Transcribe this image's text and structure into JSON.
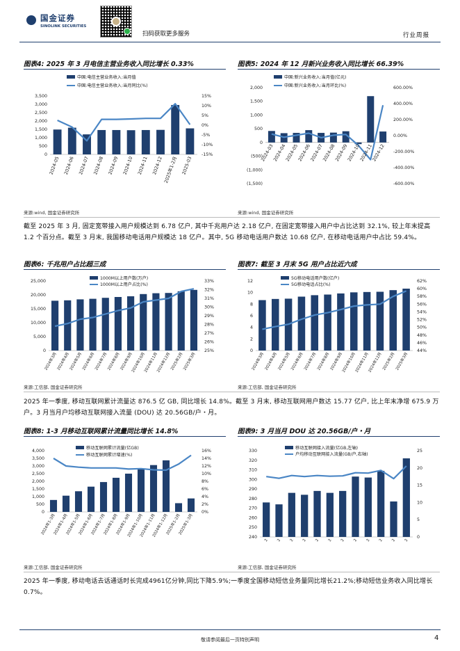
{
  "header": {
    "logo_cn": "国金证券",
    "logo_en": "SINOLINK SECURITIES",
    "scan_text": "扫码获取更多服务",
    "industry": "行业周报"
  },
  "figures": {
    "fig4": {
      "title": "图表4: 2025 年 3 月电信主营业务收入同比增长 0.33%",
      "source": "来源:wind, 国金证券研究所"
    },
    "fig5": {
      "title": "图表5: 2024 年 12 月新兴业务收入同比增长 66.39%",
      "source": "来源:wind, 国金证券研究所"
    },
    "fig6": {
      "title": "图表6: 千兆用户占比超三成",
      "source": "来源:工信部, 国金证券研究所"
    },
    "fig7": {
      "title": "图表7: 截至 3 月末 5G 用户占比近六成",
      "source": "来源:工信部, 国金证券研究所"
    },
    "fig8": {
      "title": "图表8: 1-3 月移动互联网累计流量同比增长 14.8%",
      "source": "来源:工信部, 国金证券研究所"
    },
    "fig9": {
      "title": "图表9: 3 月当月 DOU 达 20.56GB/户・月",
      "source": "来源:工信部, 国金证券研究所"
    }
  },
  "paragraphs": {
    "p1": "截至 2025 年 3 月, 固定宽带接入用户规模达到 6.78 亿户, 其中千兆用户达 2.18 亿户, 在固定宽带接入用户中占比达到 32.1%, 较上年末提高 1.2 个百分点。截至 3 月末, 我国移动电话用户规模达 18 亿户。其中, 5G 移动电话用户数达 10.68 亿户, 在移动电话用户中占比 59.4%。",
    "p2": "2025 年一季度, 移动互联网累计流量达 876.5 亿 GB, 同比增长 14.8%。截至 3 月末, 移动互联网用户数达 15.77 亿户, 比上年末净增 675.9 万户。3 月当月户均移动互联网接入流量 (DOU) 达 20.56GB/户・月。",
    "p3": "2025 年一季度, 移动电话去话通话时长完成4961亿分钟,同比下降5.9%;一季度全国移动短信业务量同比增长21.2%;移动短信业务收入同比增长 0.7%。"
  },
  "footer": {
    "disclaimer": "敬请参阅最后一页特别声明",
    "page": "4"
  },
  "colors": {
    "bar": "#1f3f6e",
    "line": "#4a86c5",
    "rule": "#1f3f6e"
  },
  "chart_data": [
    {
      "id": "fig4",
      "type": "bar",
      "categories": [
        "2024-05",
        "2024-06",
        "2024-07",
        "2024-08",
        "2024-09",
        "2024-10",
        "2024-11",
        "2024-12",
        "2025年1-2月",
        "2025-03"
      ],
      "series": [
        {
          "name": "中国:电信主营业务收入:当月值",
          "type": "bar",
          "axis": "left",
          "values": [
            1490,
            1600,
            1200,
            1460,
            1460,
            1450,
            1460,
            1470,
            2960,
            1560
          ]
        },
        {
          "name": "中国:电信主营业务收入:当月同比(%)",
          "type": "line",
          "axis": "right",
          "values": [
            2.5,
            -1,
            -8,
            3,
            3,
            3.2,
            3.5,
            3.5,
            11,
            0.33
          ]
        }
      ],
      "yleft": {
        "ticks": [
          0,
          500,
          1000,
          1500,
          2000,
          2500,
          3000,
          3500
        ],
        "labels": [
          "0",
          "500",
          "1,000",
          "1,500",
          "2,000",
          "2,500",
          "3,000",
          "3,500"
        ]
      },
      "yright": {
        "ticks": [
          -15,
          -10,
          -5,
          0,
          5,
          10,
          15
        ],
        "labels": [
          "-15%",
          "-10%",
          "-5%",
          "0%",
          "5%",
          "10%",
          "15%"
        ]
      }
    },
    {
      "id": "fig5",
      "type": "bar",
      "categories": [
        "2024-03",
        "2024-04",
        "2024-05",
        "2024-06",
        "2024-07",
        "2024-08",
        "2024-09",
        "2024-10",
        "2024-11",
        "2024-12"
      ],
      "series": [
        {
          "name": "中国:新兴业务收入:当月值(亿元)",
          "type": "bar",
          "axis": "left",
          "values": [
            420,
            340,
            350,
            450,
            350,
            360,
            410,
            -60,
            1690,
            400
          ]
        },
        {
          "name": "中国:新兴业务收入:当月环比(%)",
          "type": "line",
          "axis": "right",
          "values": [
            20,
            -20,
            5,
            30,
            -25,
            5,
            15,
            -120,
            -300,
            380
          ]
        }
      ],
      "yleft": {
        "ticks": [
          -1500,
          -1000,
          -500,
          0,
          500,
          1000,
          1500,
          2000
        ],
        "labels": [
          "(1,500)",
          "(1,000)",
          "(500)",
          "0",
          "500",
          "1,000",
          "1,500",
          "2,000"
        ]
      },
      "yright": {
        "ticks": [
          -600,
          -400,
          -200,
          0,
          200,
          400,
          600
        ],
        "labels": [
          "-600.00%",
          "-400.00%",
          "-200.00%",
          "0.00%",
          "200.00%",
          "400.00%",
          "600.00%"
        ]
      }
    },
    {
      "id": "fig6",
      "type": "bar",
      "categories": [
        "2024年3月",
        "2024年4月",
        "2024年5月",
        "2024年6月",
        "2024年7月",
        "2024年8月",
        "2024年9月",
        "2024年10月",
        "2024年11月",
        "2024年12月",
        "2025年2月",
        "2025年3月"
      ],
      "series": [
        {
          "name": "1000M以上用户数(万户)",
          "type": "bar",
          "axis": "left",
          "values": [
            17900,
            18050,
            18400,
            18600,
            18950,
            19250,
            19500,
            20300,
            20600,
            20700,
            21300,
            21800
          ]
        },
        {
          "name": "1000M以上用户占比(%)",
          "type": "line",
          "axis": "right",
          "values": [
            27.8,
            28.1,
            28.6,
            28.8,
            29.2,
            29.6,
            29.9,
            30.6,
            30.8,
            31.0,
            31.8,
            32.1
          ]
        }
      ],
      "yleft": {
        "ticks": [
          0,
          5000,
          10000,
          15000,
          20000,
          25000
        ],
        "labels": [
          "0",
          "5,000",
          "10,000",
          "15,000",
          "20,000",
          "25,000"
        ]
      },
      "yright": {
        "ticks": [
          25,
          26,
          27,
          28,
          29,
          30,
          31,
          32,
          33
        ],
        "labels": [
          "25%",
          "26%",
          "27%",
          "28%",
          "29%",
          "30%",
          "31%",
          "32%",
          "33%"
        ]
      }
    },
    {
      "id": "fig7",
      "type": "bar",
      "categories": [
        "2024年3月",
        "2024年4月",
        "2024年5月",
        "2024年6月",
        "2024年7月",
        "2024年8月",
        "2024年9月",
        "2024年10月",
        "2024年11月",
        "2024年12月",
        "2025年2月",
        "2025年3月"
      ],
      "series": [
        {
          "name": "5G移动电话用户数(亿户)",
          "type": "bar",
          "axis": "left",
          "values": [
            8.7,
            8.9,
            8.95,
            9.3,
            9.55,
            9.66,
            9.85,
            10.04,
            10.1,
            10.14,
            10.42,
            10.68
          ]
        },
        {
          "name": "5G移动电话占比(%)",
          "type": "line",
          "axis": "right",
          "values": [
            49.5,
            50.2,
            50.8,
            52.1,
            53.2,
            53.8,
            54.6,
            55.5,
            55.8,
            56.0,
            58.0,
            59.4
          ]
        }
      ],
      "yleft": {
        "ticks": [
          0,
          2,
          4,
          6,
          8,
          10,
          12
        ],
        "labels": [
          "0",
          "2",
          "4",
          "6",
          "8",
          "10",
          "12"
        ]
      },
      "yright": {
        "ticks": [
          44,
          46,
          48,
          50,
          52,
          54,
          56,
          58,
          60,
          62
        ],
        "labels": [
          "44%",
          "46%",
          "48%",
          "50%",
          "52%",
          "54%",
          "56%",
          "58%",
          "60%",
          "62%"
        ]
      }
    },
    {
      "id": "fig8",
      "type": "bar",
      "categories": [
        "2024年1-3月",
        "2024年1-4月",
        "2024年1-5月",
        "2024年1-6月",
        "2024年1-7月",
        "2024年1-8月",
        "2024年1-9月",
        "2024年1-10月",
        "2024年1-11月",
        "2024年1-12月",
        "2025年1-2月",
        "2025年1-3月"
      ],
      "series": [
        {
          "name": "移动互联网累计流量(亿GB)",
          "type": "bar",
          "axis": "left",
          "values": [
            780,
            1060,
            1350,
            1650,
            1950,
            2230,
            2500,
            2780,
            3060,
            3370,
            570,
            880
          ]
        },
        {
          "name": "移动互联网累计增速(%)",
          "type": "line",
          "axis": "right",
          "values": [
            14,
            12,
            11.7,
            11.5,
            11.5,
            11.5,
            11.2,
            11.3,
            11,
            10.9,
            12.5,
            14.8
          ]
        }
      ],
      "yleft": {
        "ticks": [
          0,
          500,
          1000,
          1500,
          2000,
          2500,
          3000,
          3500,
          4000
        ],
        "labels": [
          "0",
          "500",
          "1,000",
          "1,500",
          "2,000",
          "2,500",
          "3,000",
          "3,500",
          "4,000"
        ]
      },
      "yright": {
        "ticks": [
          0,
          2,
          4,
          6,
          8,
          10,
          12,
          14,
          16
        ],
        "labels": [
          "0%",
          "2%",
          "4%",
          "6%",
          "8%",
          "10%",
          "12%",
          "14%",
          "16%"
        ]
      }
    },
    {
      "id": "fig9",
      "type": "bar",
      "categories": [
        "2",
        "2",
        "2",
        "2",
        "2",
        "2",
        "2",
        "2",
        "2",
        "2",
        "2",
        "2"
      ],
      "series": [
        {
          "name": "移动互联网接入流量(亿GB,左轴)",
          "type": "bar",
          "axis": "left",
          "values": [
            276,
            274,
            286,
            284,
            288,
            286,
            288,
            303,
            302,
            309,
            277,
            322
          ]
        },
        {
          "name": "户均移动互联网接入流量(GB/户,右轴)",
          "type": "line",
          "axis": "right",
          "values": [
            17.5,
            17,
            17.8,
            17.5,
            17.8,
            17.6,
            17.7,
            18.6,
            18.5,
            19.3,
            16.9,
            20.56
          ]
        }
      ],
      "yleft": {
        "ticks": [
          240,
          250,
          260,
          270,
          280,
          290,
          300,
          310,
          320,
          330
        ],
        "labels": [
          "240",
          "250",
          "260",
          "270",
          "280",
          "290",
          "300",
          "310",
          "320",
          "330"
        ]
      },
      "yright": {
        "ticks": [
          0,
          5,
          10,
          15,
          20,
          25
        ],
        "labels": [
          "0",
          "5",
          "10",
          "15",
          "20",
          "25"
        ]
      }
    }
  ]
}
